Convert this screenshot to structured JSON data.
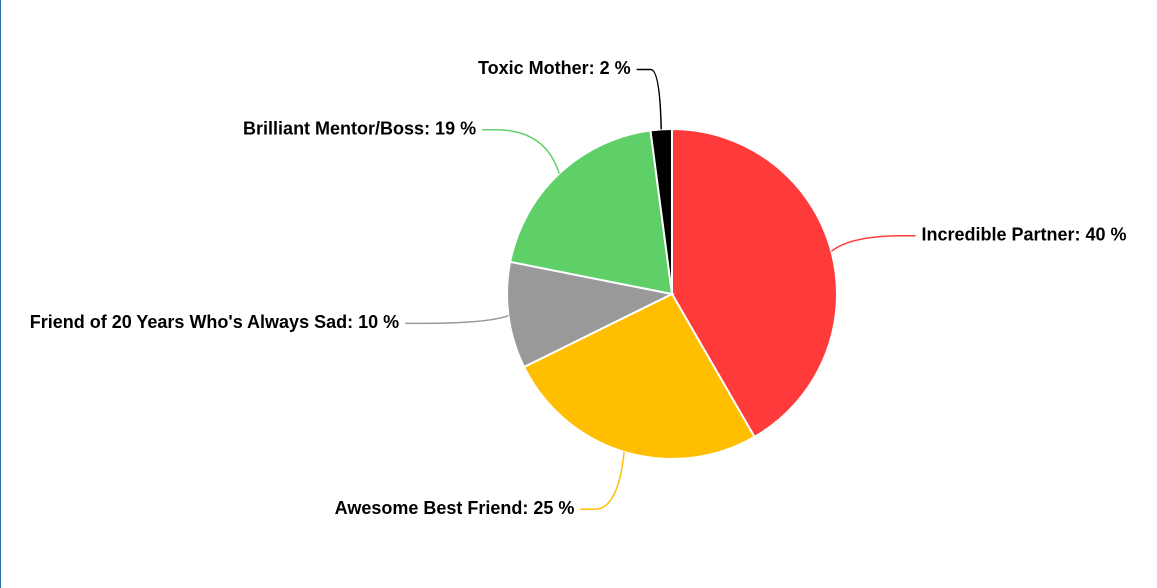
{
  "chart_data": {
    "type": "pie",
    "values": [
      40,
      25,
      10,
      19,
      2
    ],
    "value_labels": [
      "Incredible Partner: 40 %",
      "Awesome Best Friend: 25 %",
      "Friend of 20 Years Who's Always Sad: 10 %",
      "Brilliant Mentor/Boss: 19 %",
      "Toxic Mother: 2 %"
    ],
    "colors": [
      "#ff3a3a",
      "#ffbf00",
      "#999999",
      "#5fd068",
      "#000000"
    ]
  }
}
